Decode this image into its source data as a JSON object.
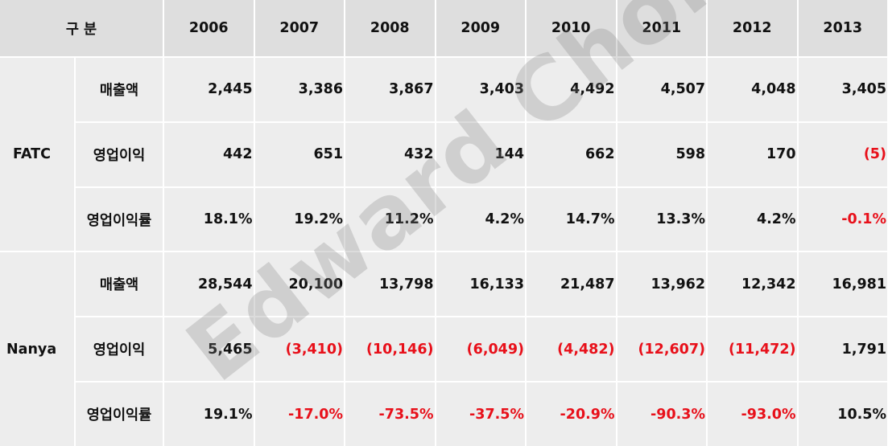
{
  "header": {
    "label": "구 분",
    "years": [
      "2006",
      "2007",
      "2008",
      "2009",
      "2010",
      "2011",
      "2012",
      "2013"
    ]
  },
  "groups": [
    {
      "name": "FATC",
      "rows": [
        {
          "metric": "매출액",
          "values": [
            "2,445",
            "3,386",
            "3,867",
            "3,403",
            "4,492",
            "4,507",
            "4,048",
            "3,405"
          ],
          "negative": [
            false,
            false,
            false,
            false,
            false,
            false,
            false,
            false
          ]
        },
        {
          "metric": "영업이익",
          "values": [
            "442",
            "651",
            "432",
            "144",
            "662",
            "598",
            "170",
            "(5)"
          ],
          "negative": [
            false,
            false,
            false,
            false,
            false,
            false,
            false,
            true
          ]
        },
        {
          "metric": "영업이익률",
          "values": [
            "18.1%",
            "19.2%",
            "11.2%",
            "4.2%",
            "14.7%",
            "13.3%",
            "4.2%",
            "-0.1%"
          ],
          "negative": [
            false,
            false,
            false,
            false,
            false,
            false,
            false,
            true
          ]
        }
      ]
    },
    {
      "name": "Nanya",
      "rows": [
        {
          "metric": "매출액",
          "values": [
            "28,544",
            "20,100",
            "13,798",
            "16,133",
            "21,487",
            "13,962",
            "12,342",
            "16,981"
          ],
          "negative": [
            false,
            false,
            false,
            false,
            false,
            false,
            false,
            false
          ]
        },
        {
          "metric": "영업이익",
          "values": [
            "5,465",
            "(3,410)",
            "(10,146)",
            "(6,049)",
            "(4,482)",
            "(12,607)",
            "(11,472)",
            "1,791"
          ],
          "negative": [
            false,
            true,
            true,
            true,
            true,
            true,
            true,
            false
          ]
        },
        {
          "metric": "영업이익률",
          "values": [
            "19.1%",
            "-17.0%",
            "-73.5%",
            "-37.5%",
            "-20.9%",
            "-90.3%",
            "-93.0%",
            "10.5%"
          ],
          "negative": [
            false,
            true,
            true,
            true,
            true,
            true,
            true,
            false
          ]
        }
      ]
    }
  ],
  "watermark": "Edward Choi",
  "colors": {
    "negative": "#e8101a",
    "header_bg": "#dedede",
    "cell_bg": "#ededed"
  }
}
